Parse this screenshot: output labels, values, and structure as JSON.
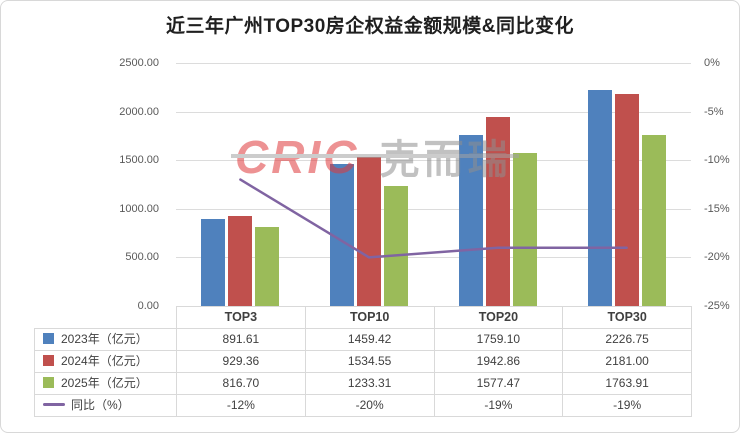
{
  "chart_data": {
    "type": "bar",
    "subtype": "grouped-bars-with-line",
    "title": "近三年广州TOP30房企权益金额规模&同比变化",
    "categories": [
      "TOP3",
      "TOP10",
      "TOP20",
      "TOP30"
    ],
    "series": [
      {
        "name": "2023年（亿元）",
        "color": "#4F81BD",
        "values": [
          891.61,
          1459.42,
          1759.1,
          2226.75
        ]
      },
      {
        "name": "2024年（亿元）",
        "color": "#C0504D",
        "values": [
          929.36,
          1534.55,
          1942.86,
          2181.0
        ]
      },
      {
        "name": "2025年（亿元）",
        "color": "#9BBB59",
        "values": [
          816.7,
          1233.31,
          1577.47,
          1763.91
        ]
      }
    ],
    "line_series": {
      "name": "同比（%）",
      "color": "#8064A2",
      "values": [
        -12,
        -20,
        -19,
        -19
      ],
      "display": [
        "-12%",
        "-20%",
        "-19%",
        "-19%"
      ]
    },
    "left_axis": {
      "min": 0,
      "max": 2500,
      "ticks": [
        "2500.00",
        "2000.00",
        "1500.00",
        "1000.00",
        "500.00",
        "0.00"
      ]
    },
    "right_axis": {
      "min": -25,
      "max": 0,
      "ticks": [
        "0%",
        "-5%",
        "-10%",
        "-15%",
        "-20%",
        "-25%"
      ]
    },
    "grid": true,
    "legend_position": "data-table-left"
  },
  "watermark": {
    "brand": "CRIC",
    "brand_cn": "克而瑞"
  }
}
